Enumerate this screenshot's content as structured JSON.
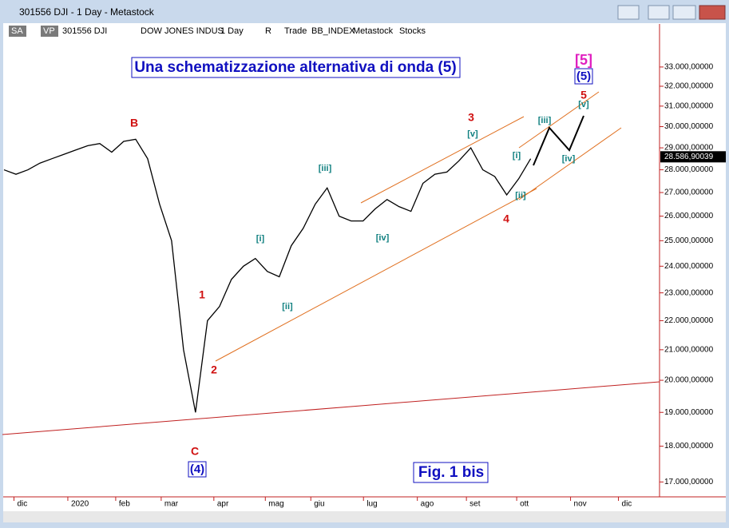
{
  "window": {
    "title": "301556 DJI - 1 Day - Metastock"
  },
  "toolbar": {
    "items": [
      "SA",
      "VP",
      "301556 DJI",
      "DOW JONES INDUS",
      "1 Day",
      "R",
      "Trade",
      "BB_INDEX",
      "Metastock",
      "Stocks"
    ]
  },
  "annotations": {
    "title": "Una schematizzazione alternativa di onda (5)",
    "figure": "Fig. 1 bis",
    "major": [
      "[5]",
      "(5)",
      "B",
      "C",
      "(4)",
      "1",
      "2",
      "3",
      "4",
      "5"
    ],
    "minor": [
      "[i]",
      "[ii]",
      "[iii]",
      "[iv]",
      "[v]",
      "[i]",
      "[ii]",
      "[iii]",
      "[iv]",
      "[v]"
    ]
  },
  "chart_data": {
    "type": "line",
    "color": "#000000",
    "log_scale": true,
    "values": [
      28000,
      27800,
      28000,
      28300,
      28500,
      28700,
      28900,
      29100,
      29200,
      28800,
      29300,
      29400,
      28500,
      26500,
      25000,
      21000,
      19000,
      22000,
      22500,
      23500,
      24000,
      24300,
      23800,
      23600,
      24800,
      25500,
      26500,
      27200,
      26000,
      25800,
      25800,
      26300,
      26700,
      26400,
      26200,
      27400,
      27800,
      27900,
      28400,
      29000,
      28000,
      27700,
      26900,
      27600,
      28500
    ],
    "xlim": [
      0,
      54.7
    ],
    "xticks": [
      {
        "value": 1.5,
        "label": "dic"
      },
      {
        "value": 6,
        "label": "2020"
      },
      {
        "value": 10,
        "label": "feb"
      },
      {
        "value": 13.8,
        "label": "mar"
      },
      {
        "value": 18.2,
        "label": "apr"
      },
      {
        "value": 22.5,
        "label": "mag"
      },
      {
        "value": 26.3,
        "label": "giu"
      },
      {
        "value": 30.7,
        "label": "lug"
      },
      {
        "value": 35.2,
        "label": "ago"
      },
      {
        "value": 39.3,
        "label": "set"
      },
      {
        "value": 43.5,
        "label": "ott"
      },
      {
        "value": 48,
        "label": "nov"
      },
      {
        "value": 52,
        "label": "dic"
      }
    ],
    "ylim": [
      16600,
      35350
    ],
    "yticks": [
      {
        "value": 17000,
        "label": "17.000,00000"
      },
      {
        "value": 18000,
        "label": "18.000,00000"
      },
      {
        "value": 19000,
        "label": "19.000,00000"
      },
      {
        "value": 20000,
        "label": "20.000,00000"
      },
      {
        "value": 21000,
        "label": "21.000,00000"
      },
      {
        "value": 22000,
        "label": "22.000,00000"
      },
      {
        "value": 23000,
        "label": "23.000,00000"
      },
      {
        "value": 24000,
        "label": "24.000,00000"
      },
      {
        "value": 25000,
        "label": "25.000,00000"
      },
      {
        "value": 26000,
        "label": "26.000,00000"
      },
      {
        "value": 27000,
        "label": "27.000,00000"
      },
      {
        "value": 28000,
        "label": "28.000,00000"
      },
      {
        "value": 29000,
        "label": "29.000,00000"
      },
      {
        "value": 30000,
        "label": "30.000,00000"
      },
      {
        "value": 31000,
        "label": "31.000,00000"
      },
      {
        "value": 32000,
        "label": "32.000,00000"
      },
      {
        "value": 33000,
        "label": "33.000,00000"
      }
    ],
    "last_price": {
      "value": 28586.90039,
      "label": "28.586,90039"
    }
  }
}
